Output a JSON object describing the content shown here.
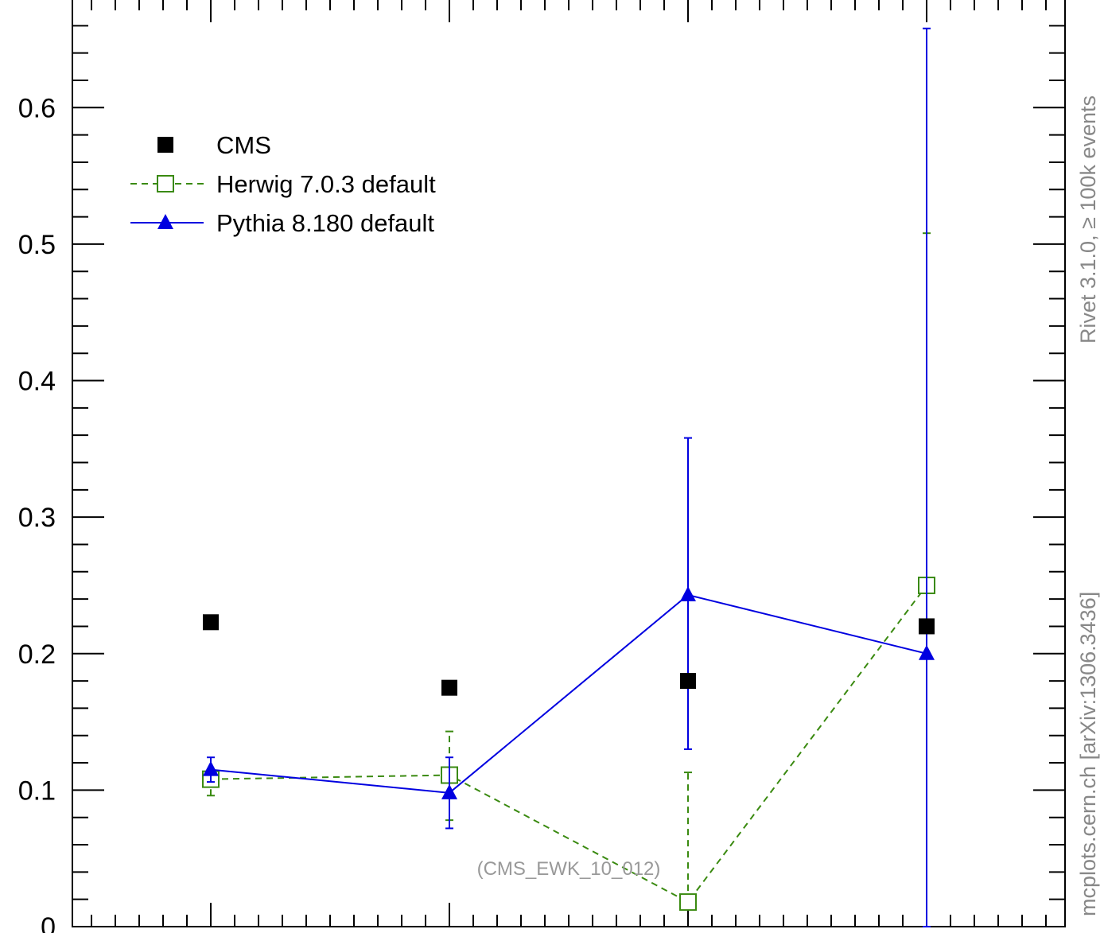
{
  "chart_data": {
    "type": "scatter",
    "title": "",
    "xlabel": "",
    "ylabel": "",
    "x": [
      1,
      2,
      3,
      4
    ],
    "xlim": [
      0.42,
      4.58
    ],
    "ylim": [
      0,
      0.68
    ],
    "yticks": [
      {
        "value": 0.1,
        "label": "0.1"
      },
      {
        "value": 0.2,
        "label": "0.2"
      },
      {
        "value": 0.3,
        "label": "0.3"
      },
      {
        "value": 0.4,
        "label": "0.4"
      },
      {
        "value": 0.5,
        "label": "0.5"
      },
      {
        "value": 0.6,
        "label": "0.6"
      }
    ],
    "bottom_tick_label": "0",
    "series": [
      {
        "name": "CMS",
        "marker": "filled-square",
        "line": "none",
        "color": "#000000",
        "values": [
          0.223,
          0.175,
          0.18,
          0.22
        ]
      },
      {
        "name": "Herwig 7.0.3 default",
        "marker": "open-square",
        "line": "dashed",
        "color": "#3a8a10",
        "values": [
          0.108,
          0.111,
          0.018,
          0.25
        ],
        "err_low": [
          0.012,
          0.033,
          0.0,
          0.0
        ],
        "err_high": [
          0.004,
          0.032,
          0.095,
          0.258
        ]
      },
      {
        "name": "Pythia 8.180 default",
        "marker": "filled-triangle",
        "line": "solid",
        "color": "#0000e0",
        "values": [
          0.115,
          0.098,
          0.243,
          0.2
        ],
        "err_low": [
          0.009,
          0.026,
          0.113,
          0.2
        ],
        "err_high": [
          0.009,
          0.026,
          0.115,
          0.458
        ]
      }
    ],
    "legend_position": "top-left",
    "grid": false,
    "annotations": {
      "analysis": "(CMS_EWK_10_012)",
      "right_top": "Rivet 3.1.0, ≥ 100k events",
      "right_bottom": "mcplots.cern.ch [arXiv:1306.3436]"
    }
  }
}
